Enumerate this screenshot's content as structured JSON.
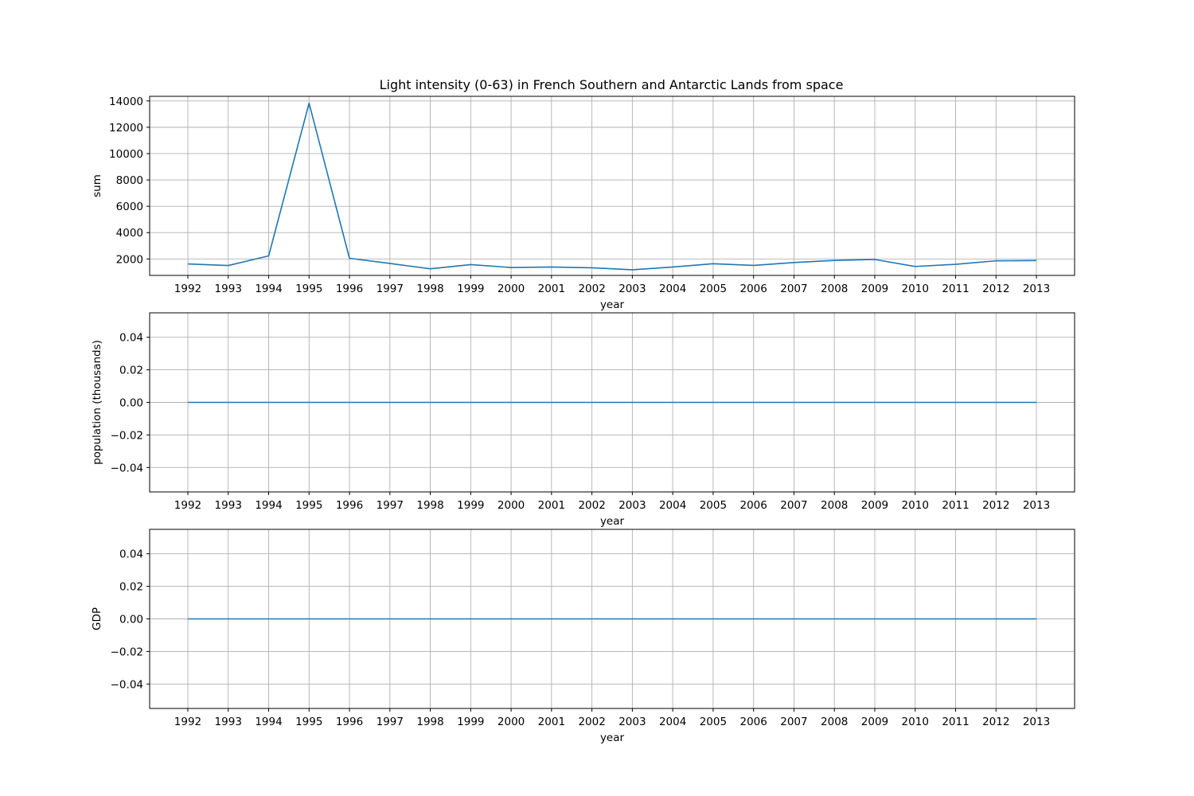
{
  "figure": {
    "title": "Light intensity (0-63) in French Southern and Antarctic Lands from space"
  },
  "colors": {
    "line": "#1f77b4",
    "grid": "#b0b0b0",
    "axes": "#000000",
    "background": "#ffffff"
  },
  "chart_data": [
    {
      "type": "line",
      "title": "Light intensity (0-63) in French Southern and Antarctic Lands from space",
      "xlabel": "year",
      "ylabel": "sum",
      "x": [
        1992,
        1993,
        1994,
        1995,
        1996,
        1997,
        1998,
        1999,
        2000,
        2001,
        2002,
        2003,
        2004,
        2005,
        2006,
        2007,
        2008,
        2009,
        2010,
        2011,
        2012,
        2013
      ],
      "x_ticks": [
        "1992",
        "1993",
        "1994",
        "1995",
        "1996",
        "1997",
        "1998",
        "1999",
        "2000",
        "2001",
        "2002",
        "2003",
        "2004",
        "2005",
        "2006",
        "2007",
        "2008",
        "2009",
        "2010",
        "2011",
        "2012",
        "2013"
      ],
      "series": [
        {
          "values": [
            1620,
            1500,
            2230,
            13830,
            2050,
            1660,
            1250,
            1570,
            1350,
            1390,
            1330,
            1180,
            1390,
            1640,
            1510,
            1730,
            1890,
            1960,
            1430,
            1590,
            1860,
            1880
          ]
        }
      ],
      "ylim": [
        750,
        14350
      ],
      "y_ticks": [
        2000,
        4000,
        6000,
        8000,
        10000,
        12000,
        14000
      ],
      "y_tick_labels": [
        "2000",
        "4000",
        "6000",
        "8000",
        "10000",
        "12000",
        "14000"
      ],
      "grid": true
    },
    {
      "type": "line",
      "title": "",
      "xlabel": "year",
      "ylabel": "population (thousands)",
      "x": [
        1992,
        1993,
        1994,
        1995,
        1996,
        1997,
        1998,
        1999,
        2000,
        2001,
        2002,
        2003,
        2004,
        2005,
        2006,
        2007,
        2008,
        2009,
        2010,
        2011,
        2012,
        2013
      ],
      "x_ticks": [
        "1992",
        "1993",
        "1994",
        "1995",
        "1996",
        "1997",
        "1998",
        "1999",
        "2000",
        "2001",
        "2002",
        "2003",
        "2004",
        "2005",
        "2006",
        "2007",
        "2008",
        "2009",
        "2010",
        "2011",
        "2012",
        "2013"
      ],
      "series": [
        {
          "values": [
            0,
            0,
            0,
            0,
            0,
            0,
            0,
            0,
            0,
            0,
            0,
            0,
            0,
            0,
            0,
            0,
            0,
            0,
            0,
            0,
            0,
            0
          ]
        }
      ],
      "ylim": [
        -0.055,
        0.055
      ],
      "y_ticks": [
        -0.04,
        -0.02,
        0,
        0.02,
        0.04
      ],
      "y_tick_labels": [
        "−0.04",
        "−0.02",
        "0.00",
        "0.02",
        "0.04"
      ],
      "grid": true
    },
    {
      "type": "line",
      "title": "",
      "xlabel": "year",
      "ylabel": "GDP",
      "x": [
        1992,
        1993,
        1994,
        1995,
        1996,
        1997,
        1998,
        1999,
        2000,
        2001,
        2002,
        2003,
        2004,
        2005,
        2006,
        2007,
        2008,
        2009,
        2010,
        2011,
        2012,
        2013
      ],
      "x_ticks": [
        "1992",
        "1993",
        "1994",
        "1995",
        "1996",
        "1997",
        "1998",
        "1999",
        "2000",
        "2001",
        "2002",
        "2003",
        "2004",
        "2005",
        "2006",
        "2007",
        "2008",
        "2009",
        "2010",
        "2011",
        "2012",
        "2013"
      ],
      "series": [
        {
          "values": [
            0,
            0,
            0,
            0,
            0,
            0,
            0,
            0,
            0,
            0,
            0,
            0,
            0,
            0,
            0,
            0,
            0,
            0,
            0,
            0,
            0,
            0
          ]
        }
      ],
      "ylim": [
        -0.055,
        0.055
      ],
      "y_ticks": [
        -0.04,
        -0.02,
        0,
        0.02,
        0.04
      ],
      "y_tick_labels": [
        "−0.04",
        "−0.02",
        "0.00",
        "0.02",
        "0.04"
      ],
      "grid": true
    }
  ]
}
